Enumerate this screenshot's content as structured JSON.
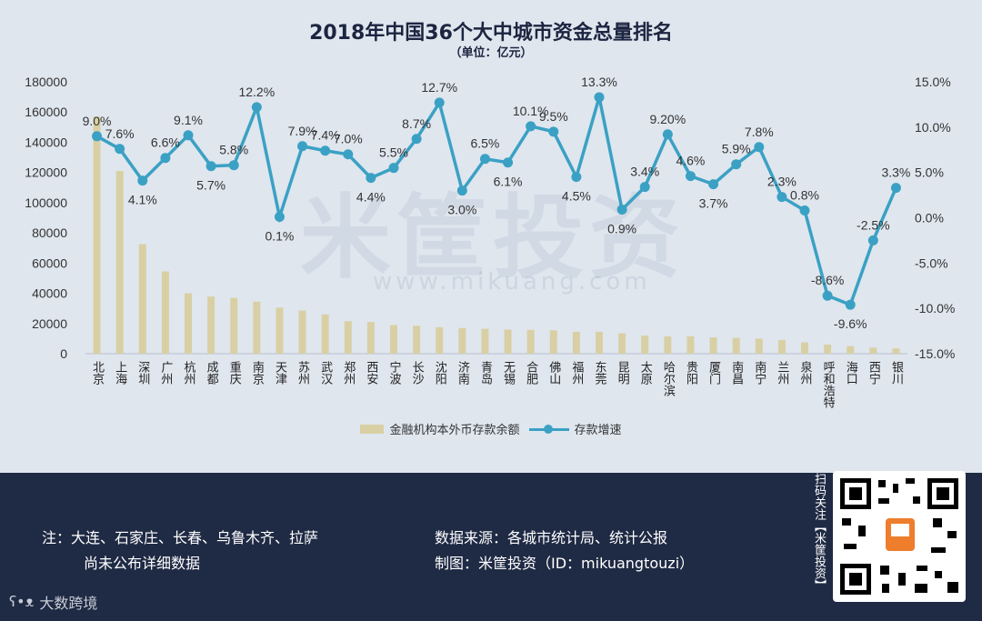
{
  "chart_data": {
    "type": "bar",
    "title": "2018年中国36个大中城市资金总量排名",
    "subtitle": "（单位：亿元）",
    "categories": [
      "北京",
      "上海",
      "深圳",
      "广州",
      "杭州",
      "成都",
      "重庆",
      "南京",
      "天津",
      "苏州",
      "武汉",
      "郑州",
      "西安",
      "宁波",
      "长沙",
      "沈阳",
      "济南",
      "青岛",
      "无锡",
      "合肥",
      "佛山",
      "福州",
      "东莞",
      "昆明",
      "太原",
      "哈尔滨",
      "贵阳",
      "厦门",
      "南昌",
      "南宁",
      "兰州",
      "泉州",
      "呼和浩特",
      "海口",
      "西宁",
      "银川"
    ],
    "series": [
      {
        "name": "金融机构本外币存款余额",
        "type": "bar",
        "axis": "left",
        "values": [
          157000,
          121000,
          72500,
          54500,
          40000,
          37800,
          37000,
          34500,
          30500,
          28500,
          26000,
          21500,
          21000,
          19000,
          18500,
          17500,
          17000,
          16500,
          16000,
          15800,
          15500,
          14500,
          14500,
          13500,
          12000,
          11500,
          11500,
          10800,
          10500,
          10000,
          9000,
          7500,
          6000,
          5000,
          4000,
          3500
        ]
      },
      {
        "name": "存款增速",
        "type": "line",
        "axis": "right",
        "values": [
          9.0,
          7.6,
          4.1,
          6.6,
          9.1,
          5.7,
          5.8,
          12.2,
          0.1,
          7.9,
          7.4,
          7.0,
          4.4,
          5.5,
          8.7,
          12.7,
          3.0,
          6.5,
          6.1,
          10.1,
          9.5,
          4.5,
          13.3,
          0.9,
          3.4,
          9.2,
          4.6,
          3.7,
          5.9,
          7.8,
          2.3,
          0.8,
          -8.6,
          -9.6,
          -2.5,
          3.3
        ],
        "labels": [
          "9.0%",
          "7.6%",
          "4.1%",
          "6.6%",
          "9.1%",
          "5.7%",
          "5.8%",
          "12.2%",
          "0.1%",
          "7.9%",
          "7.4%",
          "7.0%",
          "4.4%",
          "5.5%",
          "8.7%",
          "12.7%",
          "3.0%",
          "6.5%",
          "6.1%",
          "10.1%",
          "9.5%",
          "4.5%",
          "13.3%",
          "0.9%",
          "3.4%",
          "9.20%",
          "4.6%",
          "3.7%",
          "5.9%",
          "7.8%",
          "2.3%",
          "0.8%",
          "-8.6%",
          "-9.6%",
          "-2.5%",
          "3.3%"
        ]
      }
    ],
    "ylim_left": [
      0,
      180000
    ],
    "yticks_left": [
      "0",
      "20000",
      "40000",
      "60000",
      "80000",
      "100000",
      "120000",
      "140000",
      "160000",
      "180000"
    ],
    "ylim_right": [
      -15,
      15
    ],
    "yticks_right": [
      "-15.0%",
      "-10.0%",
      "-5.0%",
      "0.0%",
      "5.0%",
      "10.0%",
      "15.0%"
    ],
    "legend": "bottom",
    "colors": {
      "bar": "#d8d0a4",
      "line": "#3aa1c4",
      "background": "#dfe6ee",
      "footer": "#1f2a44"
    }
  },
  "legend": {
    "bar_label": "金融机构本外币存款余额",
    "line_label": "存款增速"
  },
  "footer": {
    "note_line1": "注：大连、石家庄、长春、乌鲁木齐、拉萨",
    "note_line2": "尚未公布详细数据",
    "source": "数据来源：各城市统计局、统计公报",
    "maker": "制图：米筐投资（ID：mikuangtouzi）",
    "qr_caption": "扫码关注【米筐投资】",
    "brand": "大数跨境"
  },
  "watermark": {
    "text": "米筐投资",
    "url": "www.mikuang.com"
  }
}
